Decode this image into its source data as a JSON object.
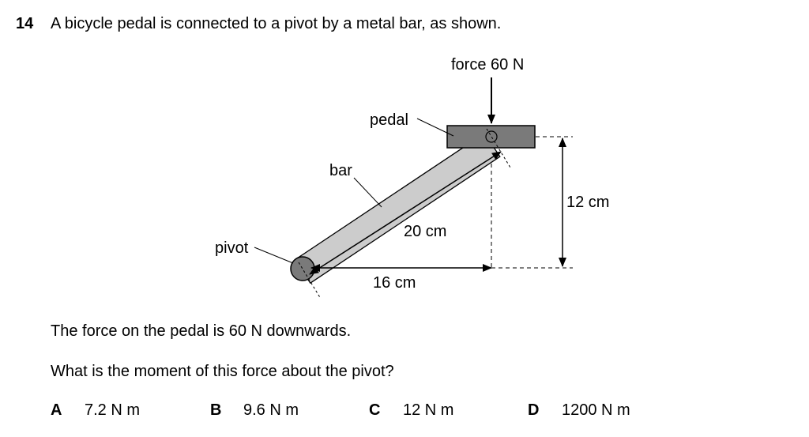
{
  "question": {
    "number": "14",
    "text": "A bicycle pedal is connected to a pivot by a metal bar, as shown."
  },
  "diagram": {
    "labels": {
      "force": "force 60 N",
      "pedal": "pedal",
      "bar": "bar",
      "pivot": "pivot",
      "bar_length": "20 cm",
      "horizontal_distance": "16 cm",
      "vertical_distance": "12 cm"
    },
    "colors": {
      "pedal_fill": "#7a7a7a",
      "bar_fill": "#cccccc",
      "pivot_fill": "#7a7a7a"
    }
  },
  "statements": {
    "line1": "The force on the pedal is 60 N downwards.",
    "line2": "What is the moment of this force about the pivot?"
  },
  "options": [
    {
      "letter": "A",
      "value": "7.2 N m"
    },
    {
      "letter": "B",
      "value": "9.6 N m"
    },
    {
      "letter": "C",
      "value": "12 N m"
    },
    {
      "letter": "D",
      "value": "1200 N m"
    }
  ]
}
